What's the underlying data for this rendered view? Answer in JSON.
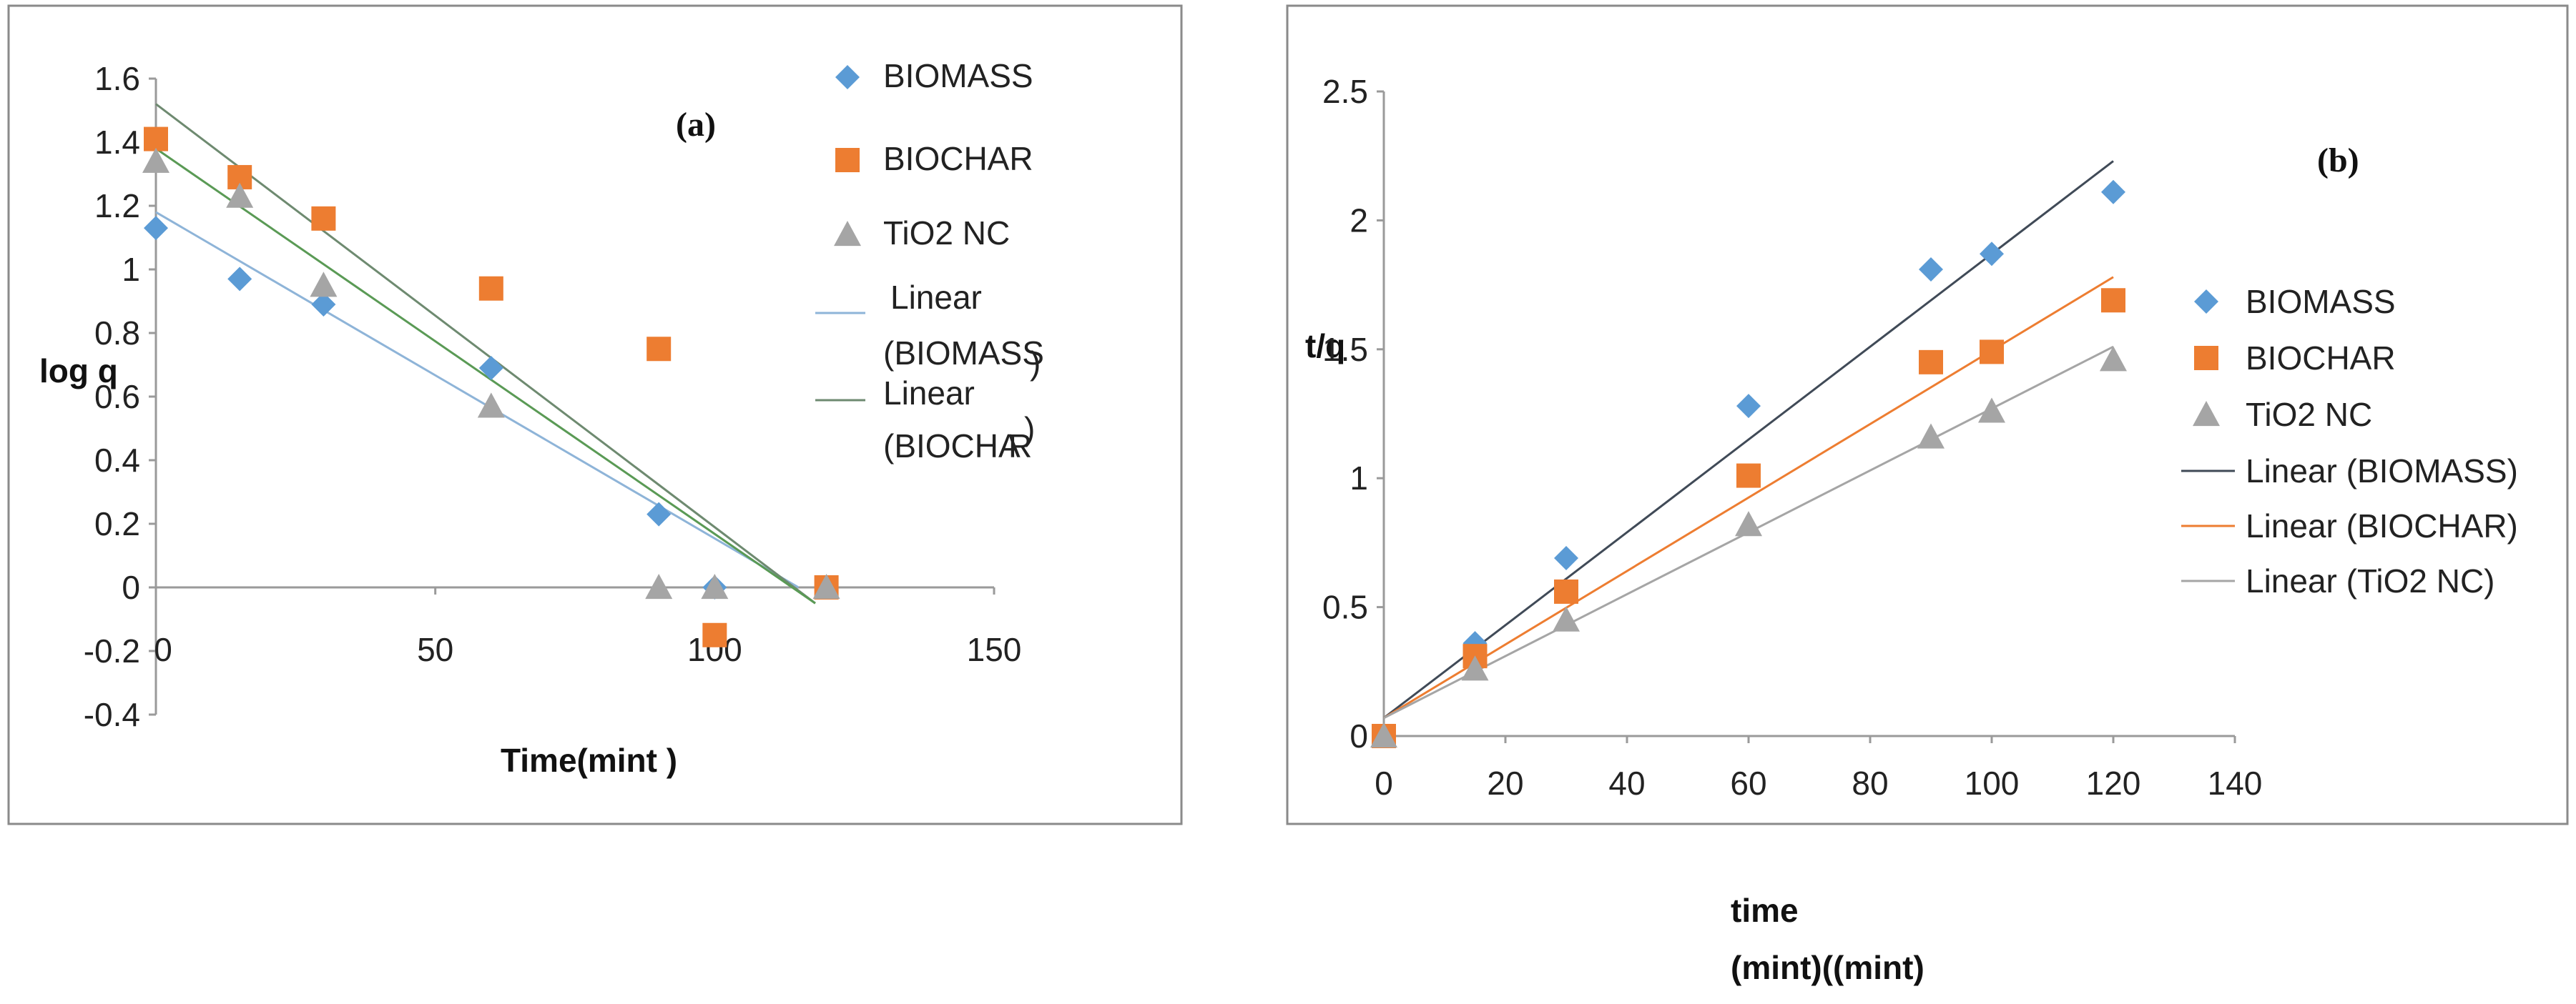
{
  "chart_data": [
    {
      "type": "scatter",
      "panel_label": "(a)",
      "xlabel": "Time(mint )",
      "ylabel": "log q",
      "xlim": [
        0,
        150
      ],
      "ylim": [
        -0.4,
        1.6
      ],
      "xticks": [
        0,
        50,
        100,
        150
      ],
      "yticks": [
        -0.4,
        -0.2,
        0,
        0.2,
        0.4,
        0.6,
        0.8,
        1,
        1.2,
        1.4,
        1.6
      ],
      "series": [
        {
          "name": "BIOMASS",
          "marker": "diamond",
          "color": "#5b9bd5",
          "x": [
            0,
            15,
            30,
            60,
            90,
            100,
            120
          ],
          "y": [
            1.13,
            0.97,
            0.89,
            0.69,
            0.23,
            0.0,
            0.0
          ]
        },
        {
          "name": "BIOCHAR",
          "marker": "square",
          "color": "#ed7d31",
          "x": [
            0,
            15,
            30,
            60,
            90,
            100,
            120
          ],
          "y": [
            1.41,
            1.29,
            1.16,
            0.94,
            0.75,
            -0.15,
            0.0
          ]
        },
        {
          "name": "TiO2 NC",
          "marker": "triangle",
          "color": "#a5a5a5",
          "x": [
            0,
            15,
            30,
            60,
            90,
            100,
            120
          ],
          "y": [
            1.34,
            1.23,
            0.95,
            0.57,
            0.0,
            0.0,
            0.0
          ]
        }
      ],
      "trendlines": [
        {
          "name": "Linear (BIOMASS)",
          "color": "#8eb4d8",
          "x": [
            0,
            115
          ],
          "y": [
            1.18,
            0.0
          ]
        },
        {
          "name": "Linear (BIOCHAR)",
          "color": "#6e8a70",
          "x": [
            0,
            118
          ],
          "y": [
            1.52,
            -0.05
          ]
        },
        {
          "name": "",
          "color": "#5a9a55",
          "x": [
            0,
            118
          ],
          "y": [
            1.38,
            -0.05
          ]
        }
      ],
      "legend": {
        "placement": "right",
        "entries": [
          "BIOMASS",
          "BIOCHAR",
          "TiO2 NC"
        ],
        "linear_biomass_lines": [
          "Linear",
          "(BIOMASS",
          ")"
        ],
        "linear_biochar_lines": [
          "Linear",
          "(BIOCHA",
          "R",
          ")"
        ]
      }
    },
    {
      "type": "scatter",
      "panel_label": "(b)",
      "xlabel_lines": [
        "time",
        "(mint)((mint)"
      ],
      "ylabel": "t/q",
      "xlim": [
        0,
        140
      ],
      "ylim": [
        0,
        2.5
      ],
      "xticks": [
        0,
        20,
        40,
        60,
        80,
        100,
        120,
        140
      ],
      "yticks": [
        0,
        0.5,
        1,
        1.5,
        2,
        2.5
      ],
      "series": [
        {
          "name": "BIOMASS",
          "marker": "diamond",
          "color": "#5b9bd5",
          "x": [
            0,
            15,
            30,
            60,
            90,
            100,
            120
          ],
          "y": [
            0.0,
            0.36,
            0.69,
            1.28,
            1.81,
            1.87,
            2.11
          ]
        },
        {
          "name": "BIOCHAR",
          "marker": "square",
          "color": "#ed7d31",
          "x": [
            0,
            15,
            30,
            60,
            90,
            100,
            120
          ],
          "y": [
            0.0,
            0.31,
            0.56,
            1.01,
            1.45,
            1.49,
            1.69
          ]
        },
        {
          "name": "TiO2 NC",
          "marker": "triangle",
          "color": "#a5a5a5",
          "x": [
            0,
            15,
            30,
            60,
            90,
            100,
            120
          ],
          "y": [
            0.0,
            0.26,
            0.45,
            0.82,
            1.16,
            1.26,
            1.46
          ]
        }
      ],
      "trendlines": [
        {
          "name": "Linear (BIOMASS)",
          "color": "#404a57",
          "x": [
            0,
            120
          ],
          "y": [
            0.07,
            2.23
          ]
        },
        {
          "name": "Linear (BIOCHAR)",
          "color": "#ed7d31",
          "x": [
            0,
            120
          ],
          "y": [
            0.07,
            1.78
          ]
        },
        {
          "name": "Linear (TiO2 NC)",
          "color": "#a5a5a5",
          "x": [
            0,
            120
          ],
          "y": [
            0.07,
            1.51
          ]
        }
      ],
      "legend": {
        "placement": "right",
        "entries": [
          "BIOMASS",
          "BIOCHAR",
          "TiO2 NC",
          "Linear (BIOMASS)",
          "Linear (BIOCHAR)",
          "Linear (TiO2 NC)"
        ]
      }
    }
  ]
}
